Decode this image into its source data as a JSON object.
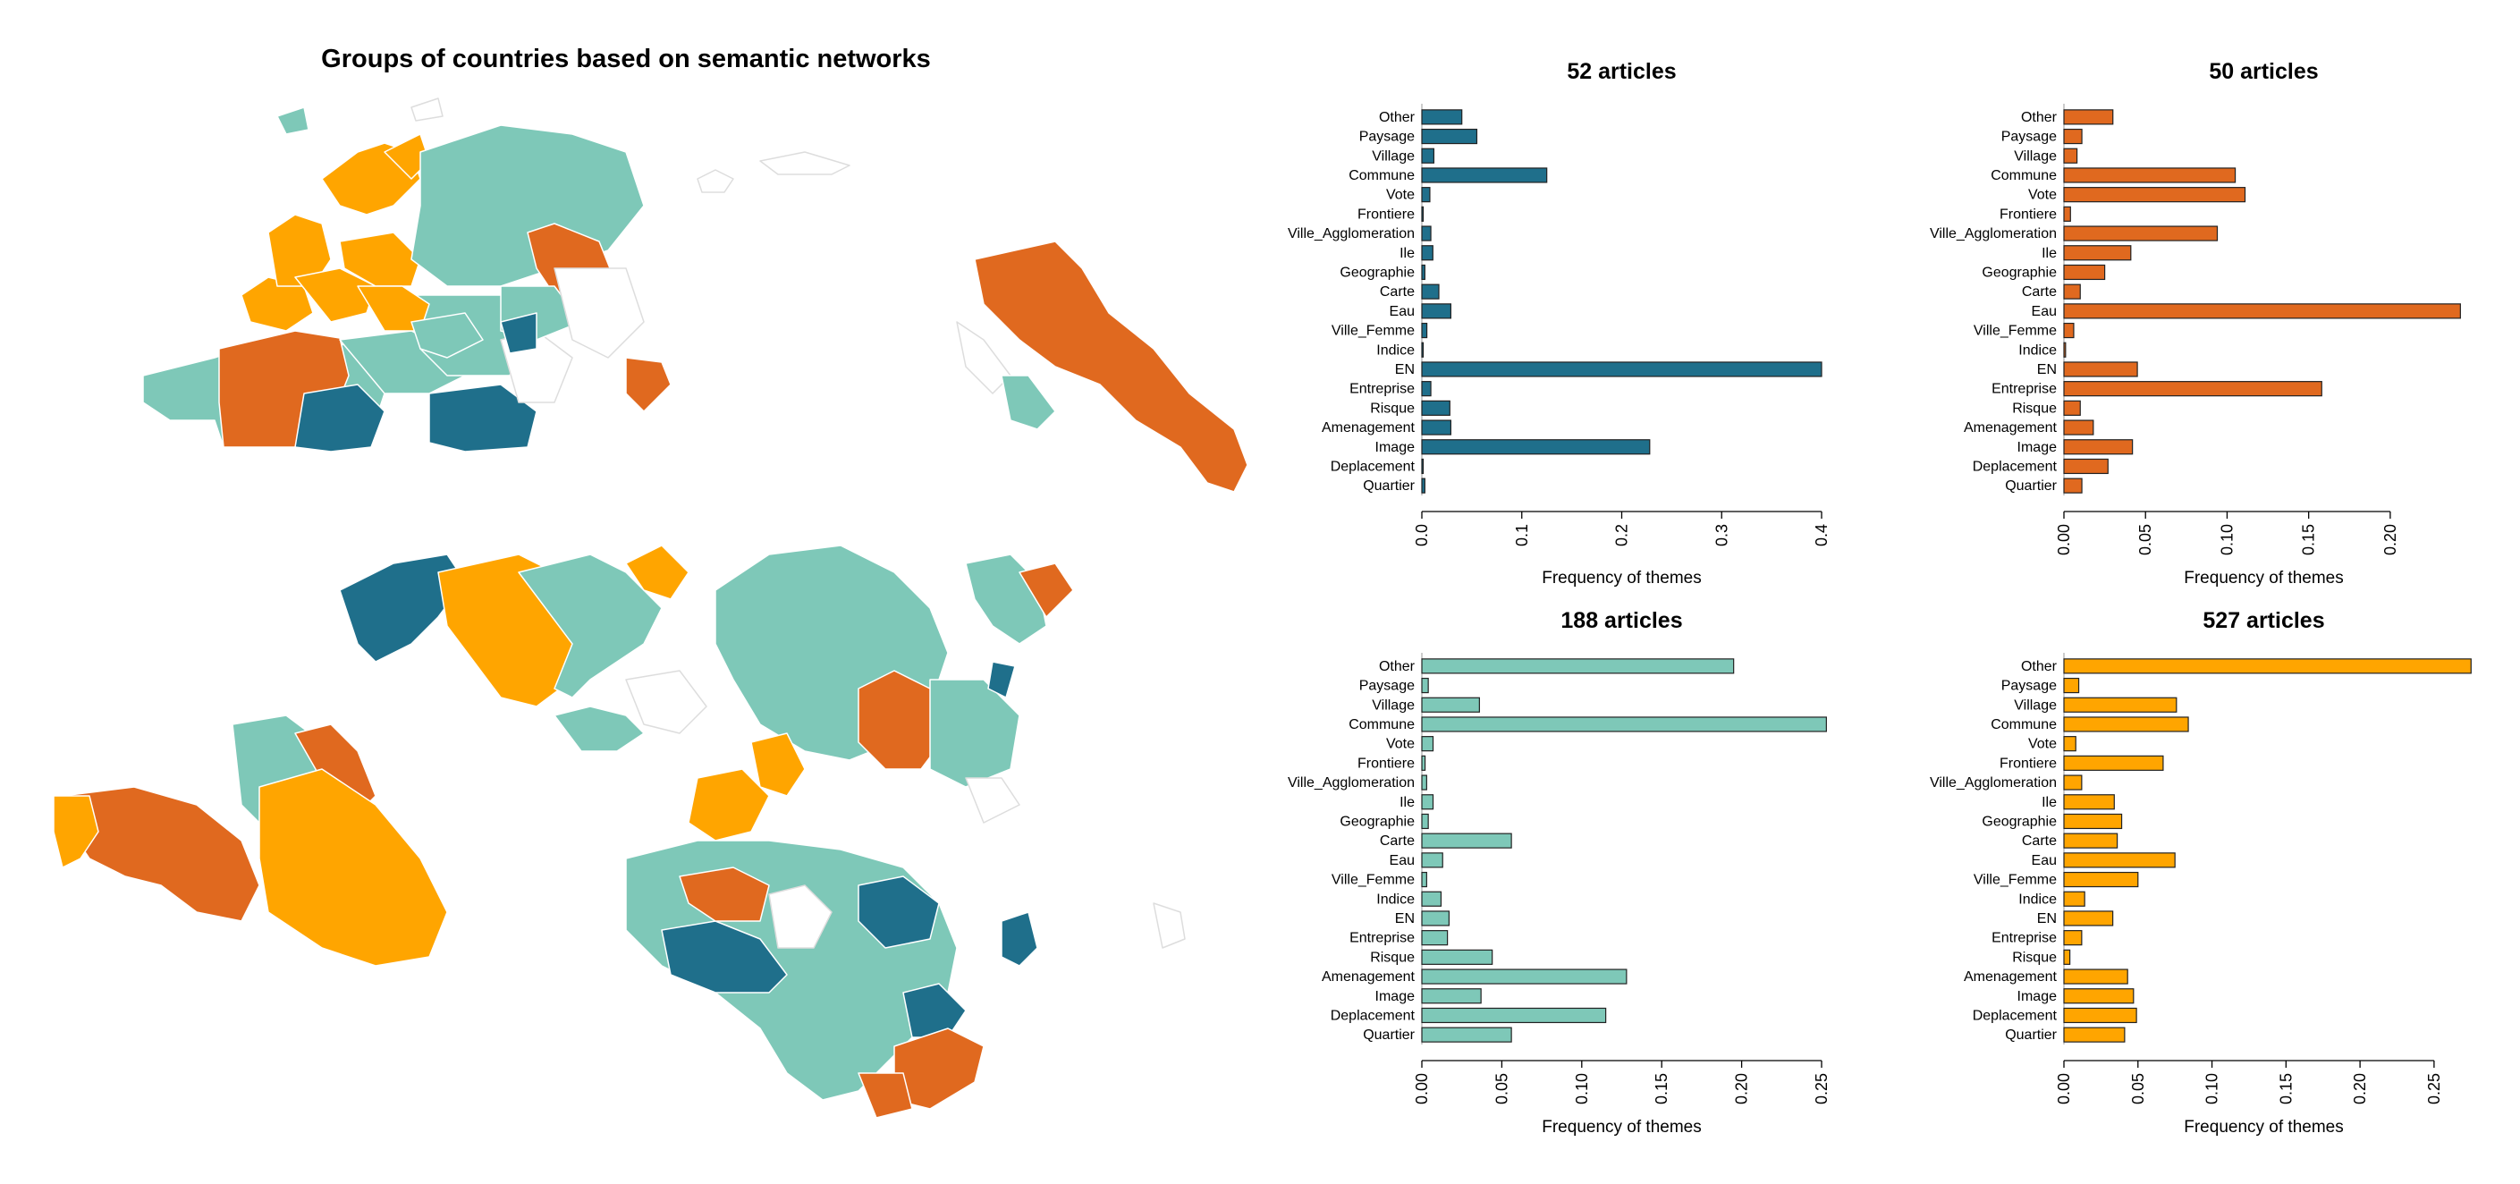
{
  "page": {
    "map_title": "Groups of countries based on semantic networks"
  },
  "colors": {
    "dark_blue": "#1f6f8b",
    "dark_orange": "#e0691f",
    "teal": "#7ec8b8",
    "orange": "#ffa500",
    "empty": "#ffffff",
    "border": "#dddddd"
  },
  "map": {
    "legend_note": "",
    "group_colors": [
      "dark_blue",
      "dark_orange",
      "teal",
      "orange"
    ]
  },
  "chart_data": [
    {
      "type": "bar",
      "orientation": "horizontal",
      "title": "52 articles",
      "xlabel": "Frequency of themes",
      "color": "#1f6f8b",
      "xlim": [
        0,
        0.4
      ],
      "xticks": [
        "0.0",
        "0.1",
        "0.2",
        "0.3",
        "0.4"
      ],
      "xtick_values": [
        0,
        0.1,
        0.2,
        0.3,
        0.4
      ],
      "categories": [
        "Other",
        "Paysage",
        "Village",
        "Commune",
        "Vote",
        "Frontiere",
        "Ville_Agglomeration",
        "Ile",
        "Geographie",
        "Carte",
        "Eau",
        "Ville_Femme",
        "Indice",
        "EN",
        "Entreprise",
        "Risque",
        "Amenagement",
        "Image",
        "Deplacement",
        "Quartier"
      ],
      "values": [
        0.04,
        0.055,
        0.012,
        0.125,
        0.008,
        0.001,
        0.009,
        0.011,
        0.003,
        0.017,
        0.029,
        0.005,
        0.001,
        0.4,
        0.009,
        0.028,
        0.029,
        0.228,
        0.001,
        0.003
      ]
    },
    {
      "type": "bar",
      "orientation": "horizontal",
      "title": "50 articles",
      "xlabel": "Frequency of themes",
      "color": "#e0691f",
      "xlim": [
        0,
        0.245
      ],
      "xticks": [
        "0.00",
        "0.05",
        "0.10",
        "0.15",
        "0.20"
      ],
      "xtick_values": [
        0,
        0.05,
        0.1,
        0.15,
        0.2
      ],
      "categories": [
        "Other",
        "Paysage",
        "Village",
        "Commune",
        "Vote",
        "Frontiere",
        "Ville_Agglomeration",
        "Ile",
        "Geographie",
        "Carte",
        "Eau",
        "Ville_Femme",
        "Indice",
        "EN",
        "Entreprise",
        "Risque",
        "Amenagement",
        "Image",
        "Deplacement",
        "Quartier"
      ],
      "values": [
        0.03,
        0.011,
        0.008,
        0.105,
        0.111,
        0.004,
        0.094,
        0.041,
        0.025,
        0.01,
        0.243,
        0.006,
        0.001,
        0.045,
        0.158,
        0.01,
        0.018,
        0.042,
        0.027,
        0.011
      ]
    },
    {
      "type": "bar",
      "orientation": "horizontal",
      "title": "188 articles",
      "xlabel": "Frequency of themes",
      "color": "#7ec8b8",
      "xlim": [
        0,
        0.25
      ],
      "xticks": [
        "0.00",
        "0.05",
        "0.10",
        "0.15",
        "0.20",
        "0.25"
      ],
      "xtick_values": [
        0,
        0.05,
        0.1,
        0.15,
        0.2,
        0.25
      ],
      "categories": [
        "Other",
        "Paysage",
        "Village",
        "Commune",
        "Vote",
        "Frontiere",
        "Ville_Agglomeration",
        "Ile",
        "Geographie",
        "Carte",
        "Eau",
        "Ville_Femme",
        "Indice",
        "EN",
        "Entreprise",
        "Risque",
        "Amenagement",
        "Image",
        "Deplacement",
        "Quartier"
      ],
      "values": [
        0.195,
        0.004,
        0.036,
        0.253,
        0.007,
        0.002,
        0.003,
        0.007,
        0.004,
        0.056,
        0.013,
        0.003,
        0.012,
        0.017,
        0.016,
        0.044,
        0.128,
        0.037,
        0.115,
        0.056
      ]
    },
    {
      "type": "bar",
      "orientation": "horizontal",
      "title": "527 articles",
      "xlabel": "Frequency of themes",
      "color": "#ffa500",
      "xlim": [
        0,
        0.27
      ],
      "xticks": [
        "0.00",
        "0.05",
        "0.10",
        "0.15",
        "0.20",
        "0.25"
      ],
      "xtick_values": [
        0,
        0.05,
        0.1,
        0.15,
        0.2,
        0.25
      ],
      "categories": [
        "Other",
        "Paysage",
        "Village",
        "Commune",
        "Vote",
        "Frontiere",
        "Ville_Agglomeration",
        "Ile",
        "Geographie",
        "Carte",
        "Eau",
        "Ville_Femme",
        "Indice",
        "EN",
        "Entreprise",
        "Risque",
        "Amenagement",
        "Image",
        "Deplacement",
        "Quartier"
      ],
      "values": [
        0.275,
        0.01,
        0.076,
        0.084,
        0.008,
        0.067,
        0.012,
        0.034,
        0.039,
        0.036,
        0.075,
        0.05,
        0.014,
        0.033,
        0.012,
        0.004,
        0.043,
        0.047,
        0.049,
        0.041
      ]
    }
  ]
}
